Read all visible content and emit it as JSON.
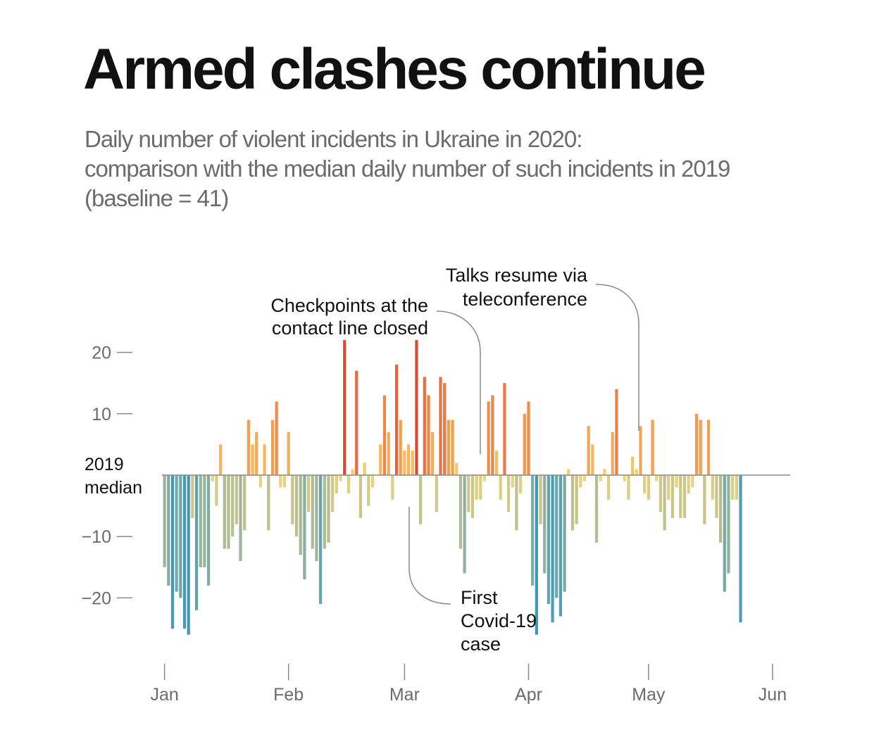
{
  "title": "Armed clashes continue",
  "subtitle": [
    "Daily number of violent incidents in Ukraine in 2020:",
    "comparison with the median daily number of such incidents in 2019",
    "(baseline = 41)"
  ],
  "chart_data": {
    "type": "bar",
    "baseline": 41,
    "baseline_label": [
      "2019",
      "median"
    ],
    "ylim": [
      -26,
      22
    ],
    "yticks": [
      20,
      10,
      -10,
      -20
    ],
    "ytick_labels": [
      "20",
      "10",
      "−10",
      "−20"
    ],
    "x_start_date": "2020-01-01",
    "month_ticks": [
      {
        "label": "Jan",
        "date": "2020-01-01"
      },
      {
        "label": "Feb",
        "date": "2020-02-01"
      },
      {
        "label": "Mar",
        "date": "2020-03-01"
      },
      {
        "label": "Apr",
        "date": "2020-04-01"
      },
      {
        "label": "May",
        "date": "2020-05-01"
      },
      {
        "label": "Jun",
        "date": "2020-06-01"
      }
    ],
    "values": [
      -15,
      -18,
      -25,
      -19,
      -20,
      -25,
      -26,
      -7,
      -22,
      -15,
      -15,
      -18,
      -1,
      -5,
      5,
      -12,
      -12,
      -10,
      -8,
      -14,
      -9,
      9,
      5,
      7,
      -2,
      5,
      -9,
      9,
      12,
      -2,
      -2,
      7,
      -8,
      -10,
      -13,
      -17,
      -6,
      -12,
      -14,
      -21,
      -12,
      -11,
      -6,
      -3,
      -1,
      22,
      -3,
      1,
      17,
      -7,
      2,
      -5,
      -2,
      0,
      5,
      13,
      7,
      -4,
      18,
      9,
      4,
      5,
      4,
      22,
      -8,
      16,
      13,
      7,
      -6,
      16,
      15,
      9,
      9,
      2,
      -12,
      -16,
      -6,
      -7,
      -4,
      -4,
      -1,
      12,
      13,
      4,
      -4,
      15,
      -6,
      -2,
      -9,
      -3,
      10,
      12,
      -18,
      -26,
      -8,
      -16,
      -21,
      -24,
      -20,
      -23,
      -19,
      1,
      -9,
      -8,
      -2,
      -1,
      8,
      5,
      -11,
      -1,
      1,
      -4,
      7,
      14,
      0,
      -1,
      -4,
      3,
      1,
      8,
      -3,
      -4,
      9,
      -1,
      -6,
      -9,
      -4,
      -7,
      -2,
      -7,
      -7,
      -3,
      -2,
      10,
      9,
      -8,
      9,
      -4,
      -7,
      -11,
      -19,
      -16,
      -4,
      -4,
      -24
    ]
  },
  "annotations": [
    {
      "lines": [
        "Checkpoints at the",
        "contact line closed"
      ],
      "date": "2020-03-21"
    },
    {
      "lines": [
        "Talks resume via",
        "teleconference"
      ],
      "date": "2020-04-30"
    },
    {
      "lines": [
        "First",
        "Covid-19",
        "case"
      ],
      "date": "2020-03-03"
    }
  ]
}
